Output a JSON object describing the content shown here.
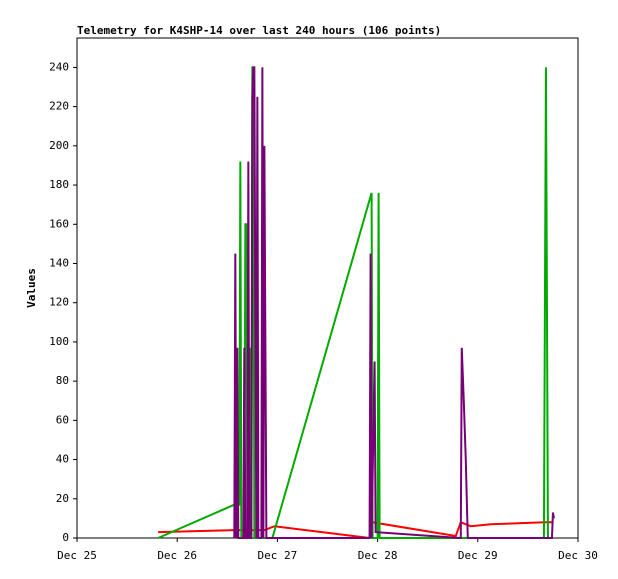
{
  "chart_data": {
    "type": "line",
    "title": "Telemetry for K4SHP-14 over last 240 hours (106 points)",
    "ylabel": "Values",
    "xlim": [
      0,
      5
    ],
    "xticks": [
      {
        "value": 0,
        "label": "Dec 25"
      },
      {
        "value": 1,
        "label": "Dec 26"
      },
      {
        "value": 2,
        "label": "Dec 27"
      },
      {
        "value": 3,
        "label": "Dec 28"
      },
      {
        "value": 4,
        "label": "Dec 29"
      },
      {
        "value": 5,
        "label": "Dec 30"
      }
    ],
    "ylim": [
      0,
      255
    ],
    "yticks": [
      0,
      20,
      40,
      60,
      80,
      100,
      120,
      140,
      160,
      180,
      200,
      220,
      240
    ],
    "grid": false,
    "series": [
      {
        "color": "#ff0000",
        "x": [
          0.81,
          1.57,
          1.87,
          1.97,
          2.92,
          2.95,
          3.78,
          3.83,
          3.93,
          4.13,
          4.67,
          4.75
        ],
        "values": [
          3,
          4,
          4,
          6,
          0,
          8,
          1,
          8,
          6,
          7,
          8,
          8
        ]
      },
      {
        "color": "#00aa00",
        "x": [
          0.81,
          1.57,
          1.62,
          1.63,
          1.64,
          1.67,
          1.68,
          1.69,
          1.7,
          1.72,
          1.73,
          1.74,
          1.75,
          1.76,
          1.77,
          1.78,
          1.95,
          2.94,
          2.95,
          3.0,
          3.01,
          3.02,
          4.66,
          4.67,
          4.68,
          4.7,
          4.75
        ],
        "values": [
          0,
          17,
          17,
          192,
          0,
          0,
          160,
          160,
          0,
          0,
          97,
          0,
          240,
          240,
          0,
          0,
          0,
          176,
          0,
          0,
          176,
          0,
          0,
          120,
          240,
          0,
          0
        ]
      },
      {
        "color": "#770077",
        "x": [
          1.57,
          1.58,
          1.59,
          1.6,
          1.61,
          1.66,
          1.67,
          1.68,
          1.7,
          1.71,
          1.72,
          1.74,
          1.75,
          1.76,
          1.77,
          1.78,
          1.79,
          1.8,
          1.81,
          1.82,
          1.84,
          1.85,
          1.86,
          1.87,
          1.89,
          2.92,
          2.93,
          2.94,
          2.97,
          2.98,
          3.82,
          3.83,
          3.84,
          3.86,
          3.88,
          3.9,
          4.74,
          4.75,
          4.76
        ],
        "values": [
          0,
          145,
          0,
          97,
          0,
          0,
          97,
          0,
          0,
          192,
          0,
          0,
          225,
          240,
          240,
          113,
          0,
          225,
          0,
          0,
          0,
          240,
          0,
          200,
          0,
          0,
          145,
          0,
          90,
          3,
          0,
          0,
          97,
          70,
          40,
          0,
          0,
          13,
          10
        ]
      }
    ]
  }
}
